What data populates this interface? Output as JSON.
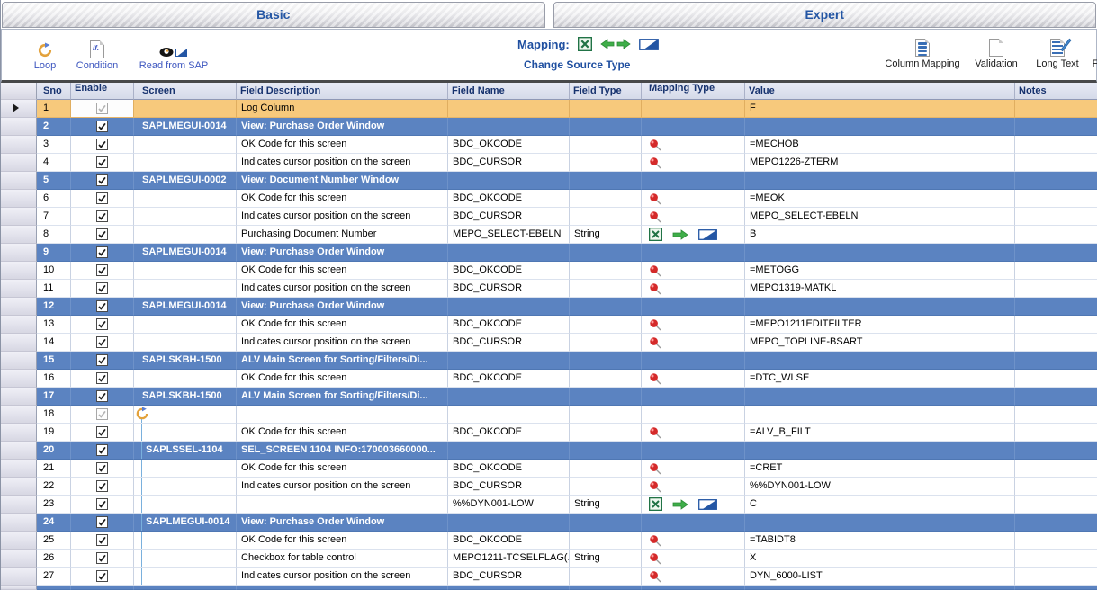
{
  "tabs": [
    {
      "label": "Basic"
    },
    {
      "label": "Expert"
    }
  ],
  "toolbar": {
    "left": [
      {
        "label": "Loop",
        "icon": "loop-icon"
      },
      {
        "label": "Condition",
        "icon": "condition-icon"
      },
      {
        "label": "Read from SAP",
        "icon": "read-from-sap-icon"
      }
    ],
    "condition_icon_text": "if.",
    "mapping_label": "Mapping:",
    "change_source_type_label": "Change Source Type",
    "right": [
      {
        "label": "Column Mapping",
        "icon": "column-mapping-icon"
      },
      {
        "label": "Validation",
        "icon": "validation-icon"
      },
      {
        "label": "Long Text",
        "icon": "long-text-icon"
      },
      {
        "label": "F",
        "icon": "cut-off-icon"
      }
    ]
  },
  "colors": {
    "accent_blue": "#2456a4",
    "screen_row_blue": "#5b83c1",
    "log_row_orange": "#f7c97c",
    "pin_red": "#d42a2a",
    "mapping_green": "#3fae49",
    "header_navy": "#16326e"
  },
  "table": {
    "columns": [
      "Sno",
      "Enable",
      "Screen",
      "Field Description",
      "Field Name",
      "Field Type",
      "Mapping Type",
      "Value",
      "Notes"
    ],
    "has_partial_next_row": true,
    "rows": [
      {
        "sno": "1",
        "type": "log",
        "current": true,
        "enable": "disabled",
        "screen": "",
        "desc": "Log Column",
        "field_name": "",
        "field_type": "",
        "mapping": "",
        "value": "F",
        "notes": "",
        "in_loop": false
      },
      {
        "sno": "2",
        "type": "screen",
        "enable": "checked",
        "screen": "SAPLMEGUI-0014",
        "desc": "View: Purchase Order Window",
        "field_name": "",
        "field_type": "",
        "mapping": "",
        "value": "",
        "notes": "",
        "in_loop": false
      },
      {
        "sno": "3",
        "type": "field",
        "enable": "checked",
        "screen": "",
        "desc": "OK Code for this screen",
        "field_name": "BDC_OKCODE",
        "field_type": "",
        "mapping": "pin",
        "value": "=MECHOB",
        "notes": "",
        "in_loop": false
      },
      {
        "sno": "4",
        "type": "field",
        "enable": "checked",
        "screen": "",
        "desc": "Indicates cursor position on the screen",
        "field_name": "BDC_CURSOR",
        "field_type": "",
        "mapping": "pin",
        "value": "MEPO1226-ZTERM",
        "notes": "",
        "in_loop": false
      },
      {
        "sno": "5",
        "type": "screen",
        "enable": "checked",
        "screen": "SAPLMEGUI-0002",
        "desc": "View: Document Number Window",
        "field_name": "",
        "field_type": "",
        "mapping": "",
        "value": "",
        "notes": "",
        "in_loop": false
      },
      {
        "sno": "6",
        "type": "field",
        "enable": "checked",
        "screen": "",
        "desc": "OK Code for this screen",
        "field_name": "BDC_OKCODE",
        "field_type": "",
        "mapping": "pin",
        "value": "=MEOK",
        "notes": "",
        "in_loop": false
      },
      {
        "sno": "7",
        "type": "field",
        "enable": "checked",
        "screen": "",
        "desc": "Indicates cursor position on the screen",
        "field_name": "BDC_CURSOR",
        "field_type": "",
        "mapping": "pin",
        "value": "MEPO_SELECT-EBELN",
        "notes": "",
        "in_loop": false
      },
      {
        "sno": "8",
        "type": "field",
        "enable": "checked",
        "screen": "",
        "desc": "Purchasing Document Number",
        "field_name": "MEPO_SELECT-EBELN",
        "field_type": "String",
        "mapping": "map",
        "value": "B",
        "notes": "",
        "in_loop": false
      },
      {
        "sno": "9",
        "type": "screen",
        "enable": "checked",
        "screen": "SAPLMEGUI-0014",
        "desc": "View: Purchase Order Window",
        "field_name": "",
        "field_type": "",
        "mapping": "",
        "value": "",
        "notes": "",
        "in_loop": false
      },
      {
        "sno": "10",
        "type": "field",
        "enable": "checked",
        "screen": "",
        "desc": "OK Code for this screen",
        "field_name": "BDC_OKCODE",
        "field_type": "",
        "mapping": "pin",
        "value": "=METOGG",
        "notes": "",
        "in_loop": false
      },
      {
        "sno": "11",
        "type": "field",
        "enable": "checked",
        "screen": "",
        "desc": "Indicates cursor position on the screen",
        "field_name": "BDC_CURSOR",
        "field_type": "",
        "mapping": "pin",
        "value": "MEPO1319-MATKL",
        "notes": "",
        "in_loop": false
      },
      {
        "sno": "12",
        "type": "screen",
        "enable": "checked",
        "screen": "SAPLMEGUI-0014",
        "desc": "View: Purchase Order Window",
        "field_name": "",
        "field_type": "",
        "mapping": "",
        "value": "",
        "notes": "",
        "in_loop": false
      },
      {
        "sno": "13",
        "type": "field",
        "enable": "checked",
        "screen": "",
        "desc": "OK Code for this screen",
        "field_name": "BDC_OKCODE",
        "field_type": "",
        "mapping": "pin",
        "value": "=MEPO1211EDITFILTER",
        "notes": "",
        "in_loop": false
      },
      {
        "sno": "14",
        "type": "field",
        "enable": "checked",
        "screen": "",
        "desc": "Indicates cursor position on the screen",
        "field_name": "BDC_CURSOR",
        "field_type": "",
        "mapping": "pin",
        "value": "MEPO_TOPLINE-BSART",
        "notes": "",
        "in_loop": false
      },
      {
        "sno": "15",
        "type": "screen",
        "enable": "checked",
        "screen": "SAPLSKBH-1500",
        "desc": "ALV Main Screen for Sorting/Filters/Di...",
        "field_name": "",
        "field_type": "",
        "mapping": "",
        "value": "",
        "notes": "",
        "in_loop": false
      },
      {
        "sno": "16",
        "type": "field",
        "enable": "checked",
        "screen": "",
        "desc": "OK Code for this screen",
        "field_name": "BDC_OKCODE",
        "field_type": "",
        "mapping": "pin",
        "value": "=DTC_WLSE",
        "notes": "",
        "in_loop": false
      },
      {
        "sno": "17",
        "type": "screen",
        "enable": "checked",
        "screen": "SAPLSKBH-1500",
        "desc": "ALV Main Screen for Sorting/Filters/Di...",
        "field_name": "",
        "field_type": "",
        "mapping": "",
        "value": "",
        "notes": "",
        "in_loop": false
      },
      {
        "sno": "18",
        "type": "loop",
        "enable": "disabled",
        "screen": "",
        "desc": "",
        "field_name": "",
        "field_type": "",
        "mapping": "",
        "value": "",
        "notes": "",
        "in_loop": false
      },
      {
        "sno": "19",
        "type": "field",
        "enable": "checked",
        "screen": "",
        "desc": "OK Code for this screen",
        "field_name": "BDC_OKCODE",
        "field_type": "",
        "mapping": "pin",
        "value": "=ALV_B_FILT",
        "notes": "",
        "in_loop": true
      },
      {
        "sno": "20",
        "type": "screen",
        "enable": "checked",
        "screen": "SAPLSSEL-1104",
        "desc": "SEL_SCREEN 1104 INFO:170003660000...",
        "field_name": "",
        "field_type": "",
        "mapping": "",
        "value": "",
        "notes": "",
        "in_loop": true
      },
      {
        "sno": "21",
        "type": "field",
        "enable": "checked",
        "screen": "",
        "desc": "OK Code for this screen",
        "field_name": "BDC_OKCODE",
        "field_type": "",
        "mapping": "pin",
        "value": "=CRET",
        "notes": "",
        "in_loop": true
      },
      {
        "sno": "22",
        "type": "field",
        "enable": "checked",
        "screen": "",
        "desc": "Indicates cursor position on the screen",
        "field_name": "BDC_CURSOR",
        "field_type": "",
        "mapping": "pin",
        "value": "%%DYN001-LOW",
        "notes": "",
        "in_loop": true
      },
      {
        "sno": "23",
        "type": "field",
        "enable": "checked",
        "screen": "",
        "desc": "",
        "field_name": "%%DYN001-LOW",
        "field_type": "String",
        "mapping": "map",
        "value": "C",
        "notes": "",
        "in_loop": true
      },
      {
        "sno": "24",
        "type": "screen",
        "enable": "checked",
        "screen": "SAPLMEGUI-0014",
        "desc": "View: Purchase Order Window",
        "field_name": "",
        "field_type": "",
        "mapping": "",
        "value": "",
        "notes": "",
        "in_loop": true
      },
      {
        "sno": "25",
        "type": "field",
        "enable": "checked",
        "screen": "",
        "desc": "OK Code for this screen",
        "field_name": "BDC_OKCODE",
        "field_type": "",
        "mapping": "pin",
        "value": "=TABIDT8",
        "notes": "",
        "in_loop": true
      },
      {
        "sno": "26",
        "type": "field",
        "enable": "checked",
        "screen": "",
        "desc": "Checkbox for table control",
        "field_name": "MEPO1211-TCSELFLAG(...",
        "field_type": "String",
        "mapping": "pin",
        "value": "X",
        "notes": "",
        "in_loop": true
      },
      {
        "sno": "27",
        "type": "field",
        "enable": "checked",
        "screen": "",
        "desc": "Indicates cursor position on the screen",
        "field_name": "BDC_CURSOR",
        "field_type": "",
        "mapping": "pin",
        "value": "DYN_6000-LIST",
        "notes": "",
        "in_loop": true
      }
    ]
  }
}
